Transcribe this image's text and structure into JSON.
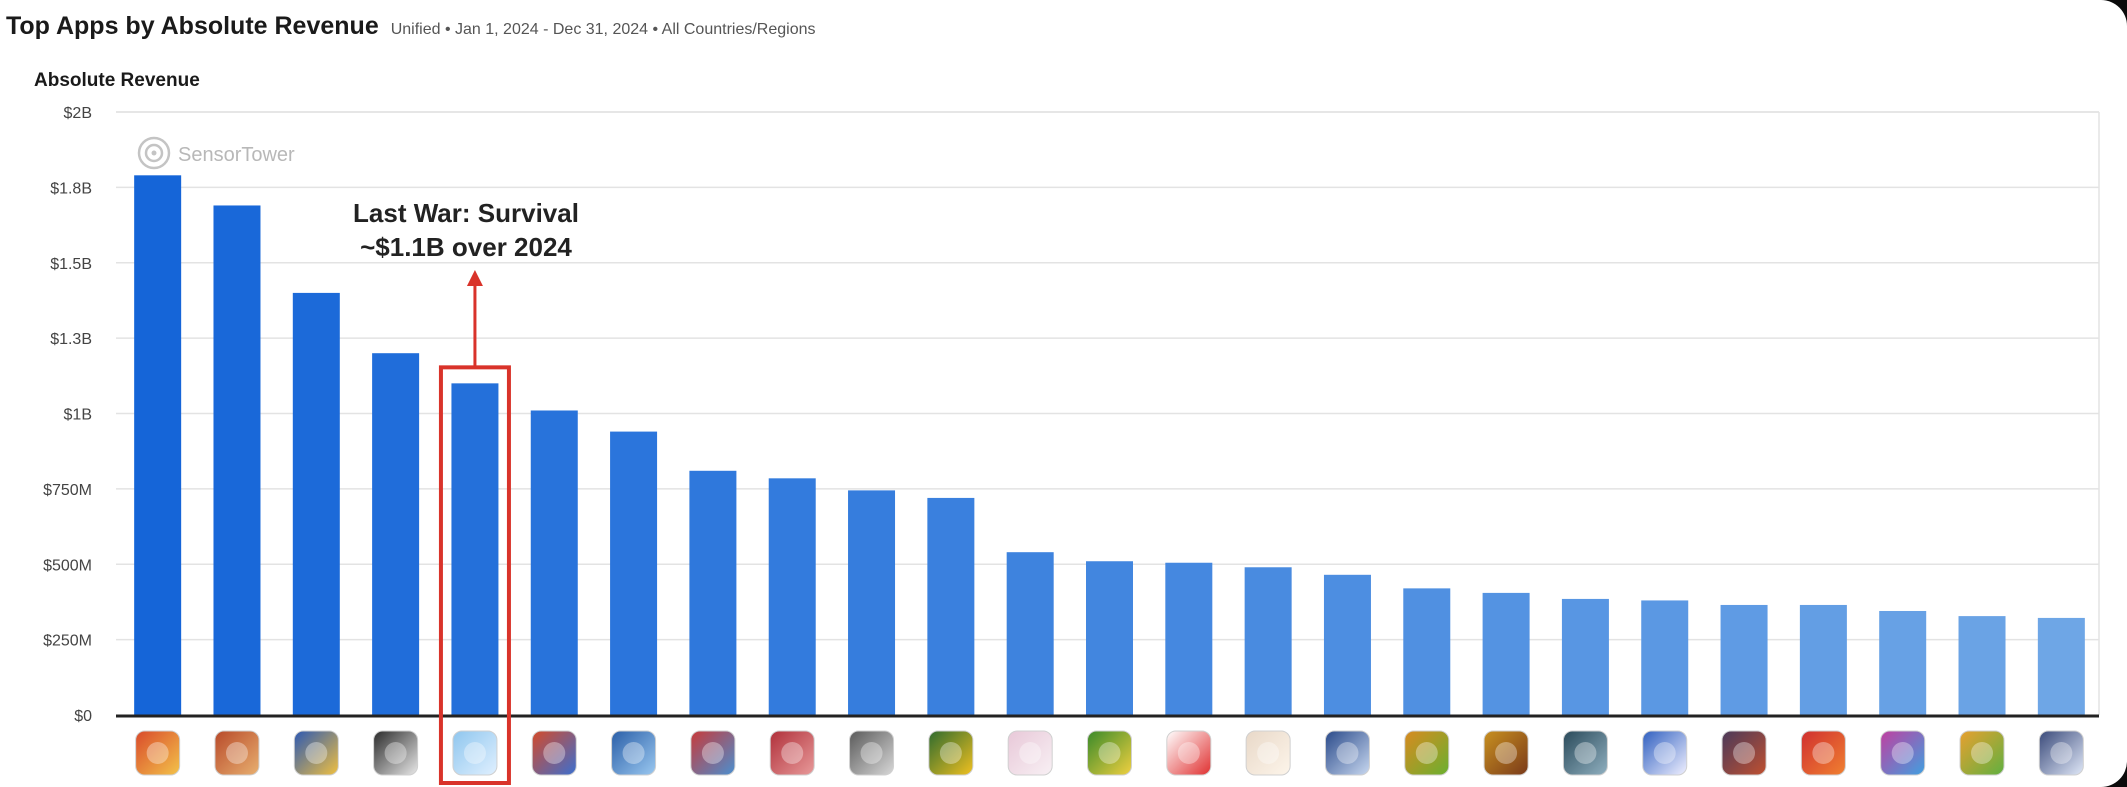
{
  "header": {
    "title": "Top Apps by Absolute Revenue",
    "subtitle": "Unified • Jan 1, 2024 - Dec 31, 2024 • All Countries/Regions"
  },
  "watermark": {
    "text": "SensorTower",
    "icon": "sensor-tower-logo-icon"
  },
  "colors": {
    "bar_dark": "#1565d8",
    "bar_light": "#6ea6e6",
    "highlight": "#d9332a",
    "grid": "#e3e3e3",
    "axis": "#222222"
  },
  "chart_data": {
    "type": "bar",
    "title": "Top Apps by Absolute Revenue",
    "ylabel": "Absolute Revenue",
    "xlabel": "",
    "ylim": [
      0,
      2000000000
    ],
    "y_ticks": [
      {
        "value": 0,
        "label": "$0"
      },
      {
        "value": 250000000,
        "label": "$250M"
      },
      {
        "value": 500000000,
        "label": "$500M"
      },
      {
        "value": 750000000,
        "label": "$750M"
      },
      {
        "value": 1000000000,
        "label": "$1B"
      },
      {
        "value": 1250000000,
        "label": "$1.3B"
      },
      {
        "value": 1500000000,
        "label": "$1.5B"
      },
      {
        "value": 1750000000,
        "label": "$1.8B"
      },
      {
        "value": 2000000000,
        "label": "$2B"
      }
    ],
    "grid": true,
    "values": [
      1790000000,
      1690000000,
      1400000000,
      1200000000,
      1100000000,
      1010000000,
      940000000,
      810000000,
      785000000,
      745000000,
      720000000,
      540000000,
      510000000,
      505000000,
      490000000,
      465000000,
      420000000,
      405000000,
      385000000,
      380000000,
      365000000,
      365000000,
      345000000,
      328000000,
      322000000
    ],
    "category_icons": [
      "app-icon-1",
      "app-icon-2",
      "app-icon-3",
      "roblox-icon",
      "last-war-survival-icon",
      "app-icon-6",
      "app-icon-7",
      "app-icon-8",
      "app-icon-9",
      "app-icon-10",
      "app-icon-11",
      "app-icon-12",
      "app-icon-13",
      "pokemon-go-icon",
      "app-icon-15",
      "app-icon-16",
      "app-icon-17",
      "app-icon-18",
      "app-icon-19",
      "app-icon-20",
      "app-icon-21",
      "app-icon-22",
      "app-icon-23",
      "app-icon-24",
      "app-icon-25"
    ],
    "highlight_index": 4,
    "annotation": {
      "line1": "Last War: Survival",
      "line2": "~$1.1B over 2024"
    }
  },
  "icon_palettes": [
    [
      "#d94a2b",
      "#f3c34a"
    ],
    [
      "#b84a2a",
      "#e8b070"
    ],
    [
      "#2d59b3",
      "#f0c040"
    ],
    [
      "#2b2b2b",
      "#e8e8e8"
    ],
    [
      "#8fc6ee",
      "#e0f0ff"
    ],
    [
      "#d44a2a",
      "#3b6fd0"
    ],
    [
      "#2b5fa8",
      "#9ac8f0"
    ],
    [
      "#c83a3a",
      "#4a8fd0"
    ],
    [
      "#b0303a",
      "#e89a9a"
    ],
    [
      "#5a5a5a",
      "#d8d8d8"
    ],
    [
      "#2f6b2f",
      "#f0c020"
    ],
    [
      "#e8c8d8",
      "#f8f0f4"
    ],
    [
      "#3a8a2a",
      "#f0d040"
    ],
    [
      "#ffffff",
      "#e03030"
    ],
    [
      "#e8d8c8",
      "#fdf5ea"
    ],
    [
      "#2a4a8a",
      "#c8d8f0"
    ],
    [
      "#d88a20",
      "#6ab030"
    ],
    [
      "#c89020",
      "#7a3a1a"
    ],
    [
      "#2a4a5a",
      "#90b0c0"
    ],
    [
      "#3060c0",
      "#f0f0ff"
    ],
    [
      "#4a3a5a",
      "#c05030"
    ],
    [
      "#d03030",
      "#f08030"
    ],
    [
      "#c040a0",
      "#40a0e0"
    ],
    [
      "#e8a030",
      "#60b040"
    ],
    [
      "#3a4a7a",
      "#e0e8f8"
    ]
  ]
}
